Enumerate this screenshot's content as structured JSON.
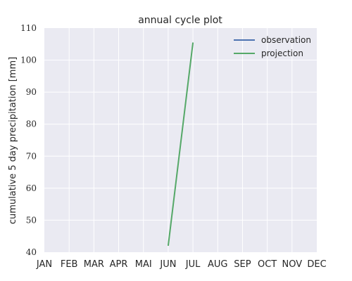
{
  "chart_data": {
    "type": "line",
    "title": "annual cycle plot",
    "xlabel": "",
    "ylabel": "cumulative 5 day precipitation [mm]",
    "categories": [
      "JAN",
      "FEB",
      "MAR",
      "APR",
      "MAI",
      "JUN",
      "JUL",
      "AUG",
      "SEP",
      "OCT",
      "NOV",
      "DEC"
    ],
    "ylim": [
      40,
      110
    ],
    "yticks": [
      40,
      50,
      60,
      70,
      80,
      90,
      100,
      110
    ],
    "grid": true,
    "legend_position": "top-right",
    "series": [
      {
        "name": "observation",
        "color": "#4c72b0",
        "points": []
      },
      {
        "name": "projection",
        "color": "#55a868",
        "points": [
          [
            "JUN",
            42
          ],
          [
            "JUL",
            105.5
          ]
        ]
      }
    ]
  }
}
